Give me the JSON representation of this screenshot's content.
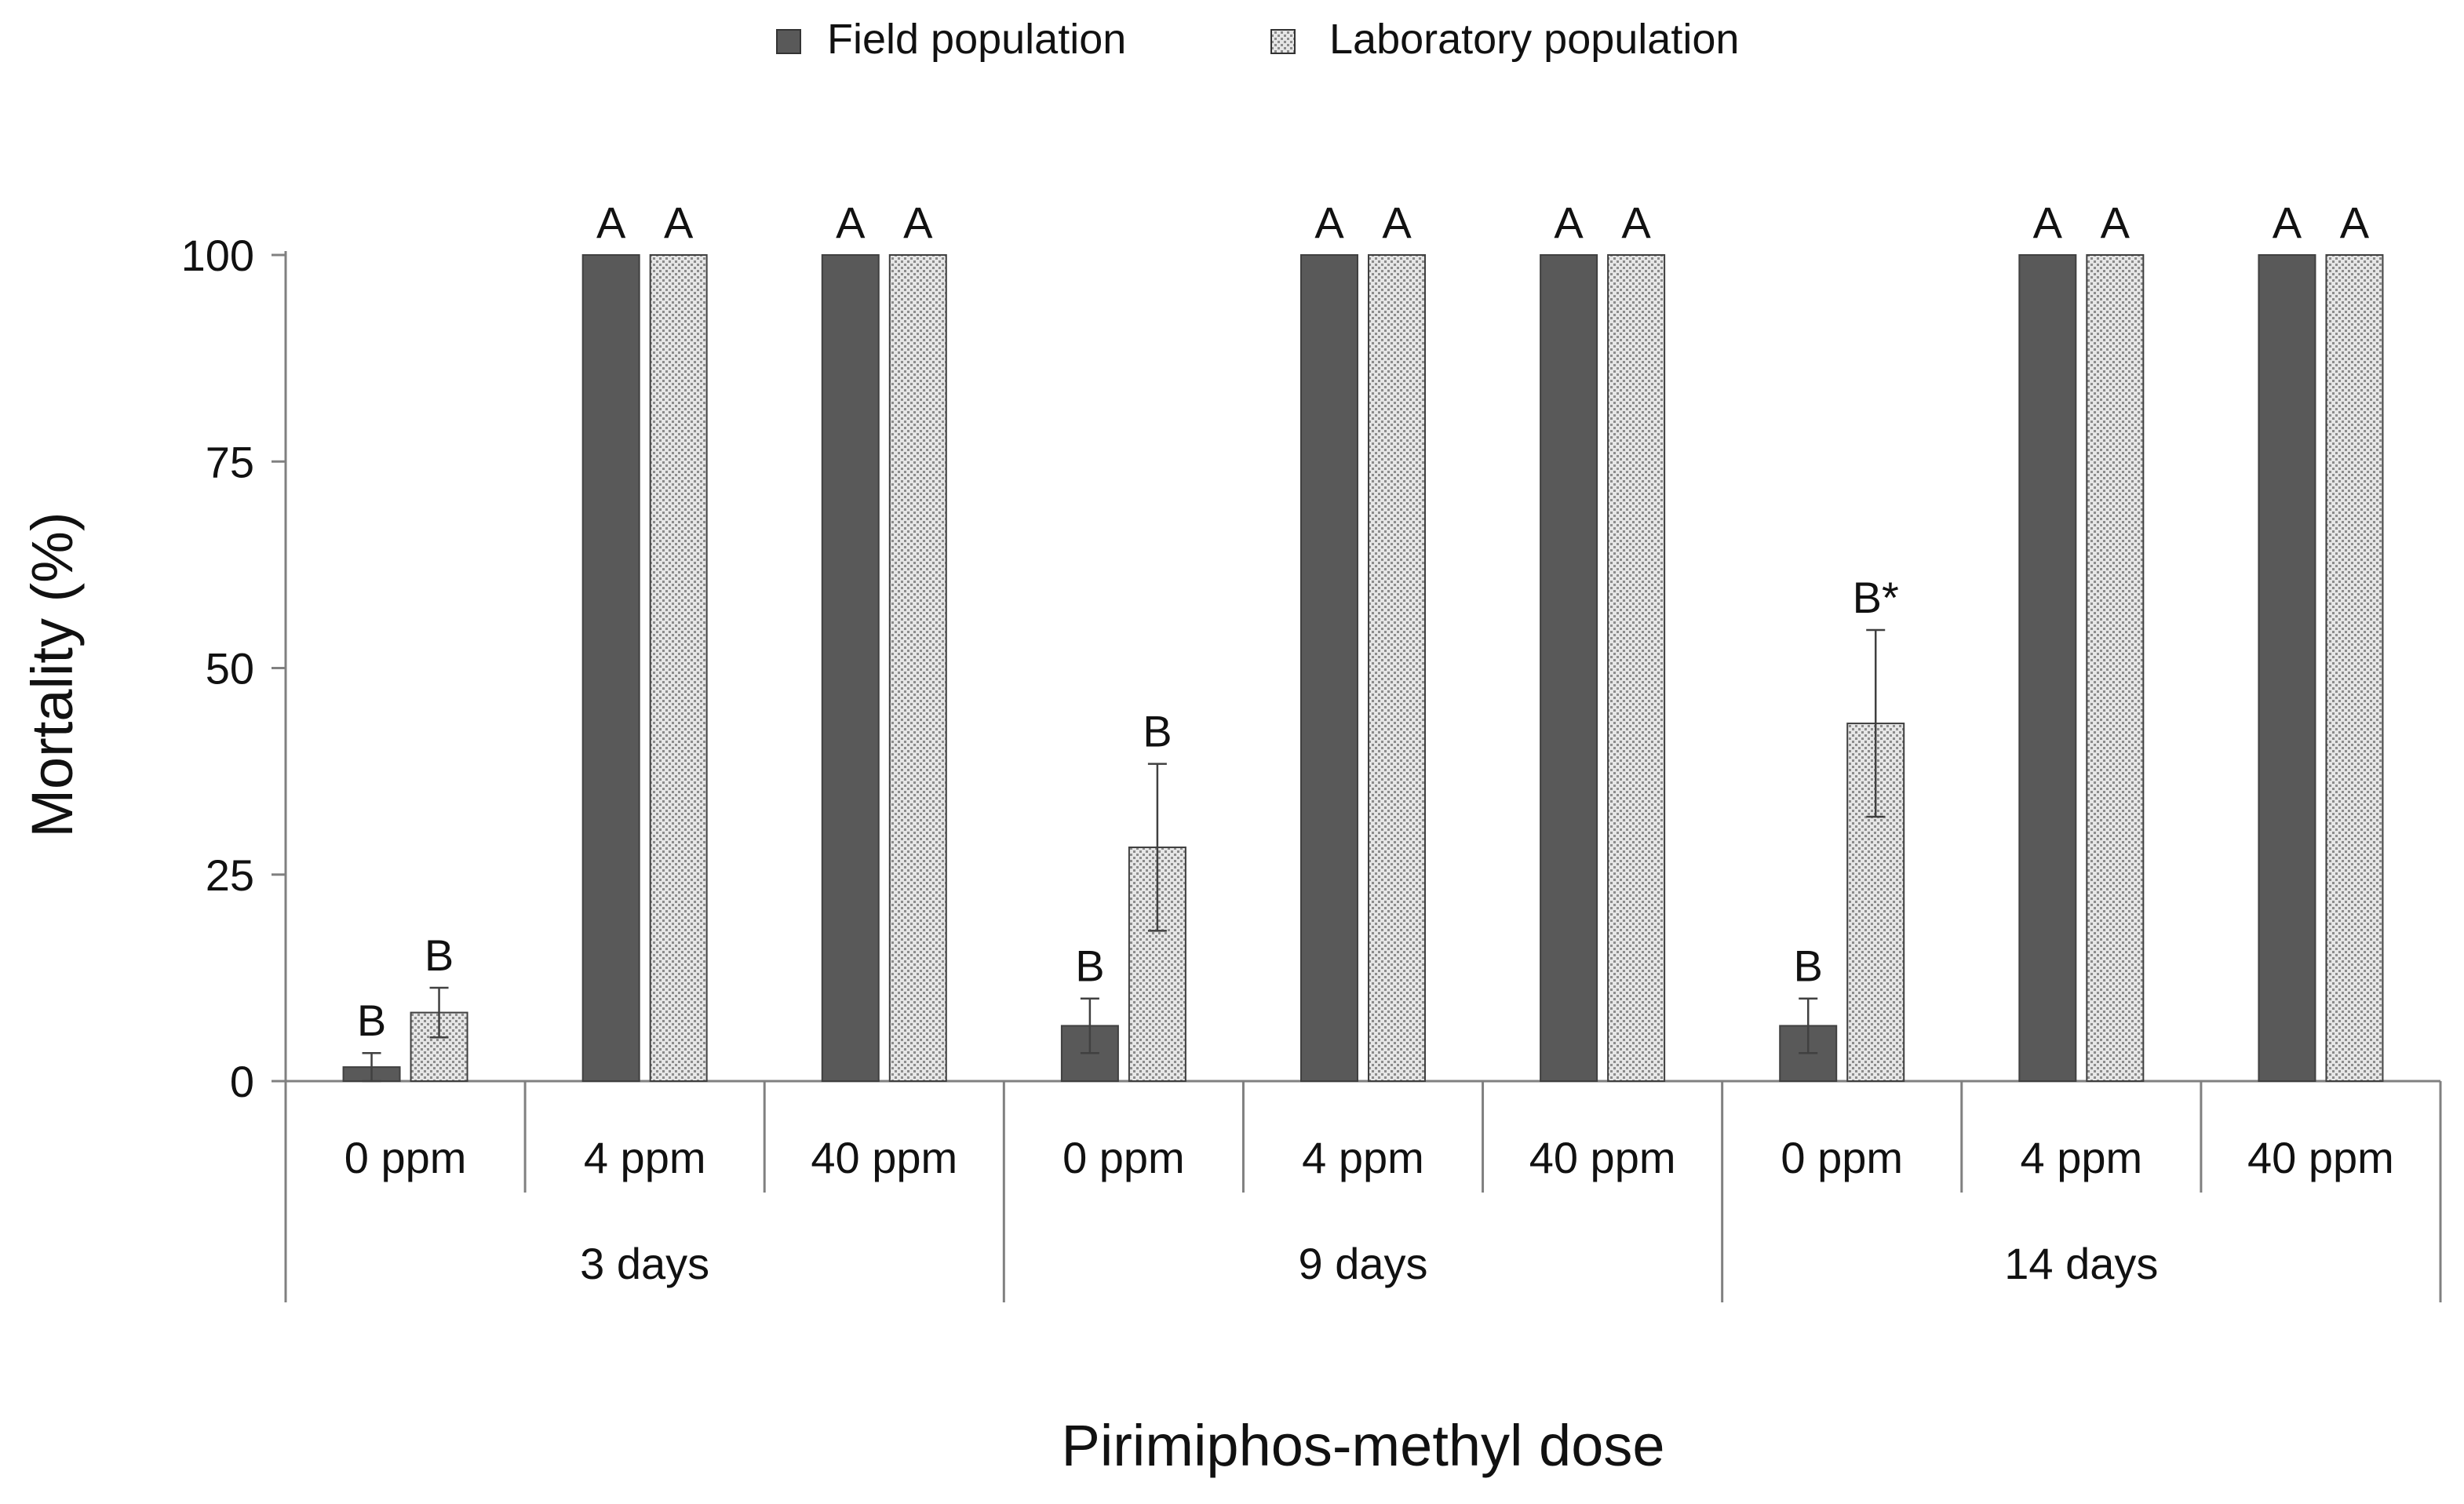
{
  "chart_data": {
    "type": "bar",
    "ylabel": "Mortality (%)",
    "xlabel": "Pirimiphos-methyl dose",
    "ylim": [
      0,
      100
    ],
    "yticks": [
      0,
      25,
      50,
      75,
      100
    ],
    "grid": false,
    "legend_position": "top-center",
    "groups": [
      "3 days",
      "9 days",
      "14 days"
    ],
    "doses": [
      "0 ppm",
      "4 ppm",
      "40 ppm"
    ],
    "categories": [
      "0 ppm",
      "4 ppm",
      "40 ppm",
      "0 ppm",
      "4 ppm",
      "40 ppm",
      "0 ppm",
      "4 ppm",
      "40 ppm"
    ],
    "series": [
      {
        "name": "Field population",
        "color": "#595959",
        "pattern": "solid",
        "values": [
          1.7,
          100,
          100,
          6.7,
          100,
          100,
          6.7,
          100,
          100
        ],
        "errors": [
          1.7,
          0,
          0,
          3.3,
          0,
          0,
          3.3,
          0,
          0
        ],
        "letters": [
          "B",
          "A",
          "A",
          "B",
          "A",
          "A",
          "B",
          "A",
          "A"
        ]
      },
      {
        "name": "Laboratory population",
        "color": "#d9d9d9",
        "pattern": "dotted",
        "values": [
          8.3,
          100,
          100,
          28.3,
          100,
          100,
          43.3,
          100,
          100
        ],
        "errors": [
          3.0,
          0,
          0,
          10.1,
          0,
          0,
          11.3,
          0,
          0
        ],
        "letters": [
          "B",
          "A",
          "A",
          "B",
          "A",
          "A",
          "B*",
          "A",
          "A"
        ]
      }
    ]
  }
}
